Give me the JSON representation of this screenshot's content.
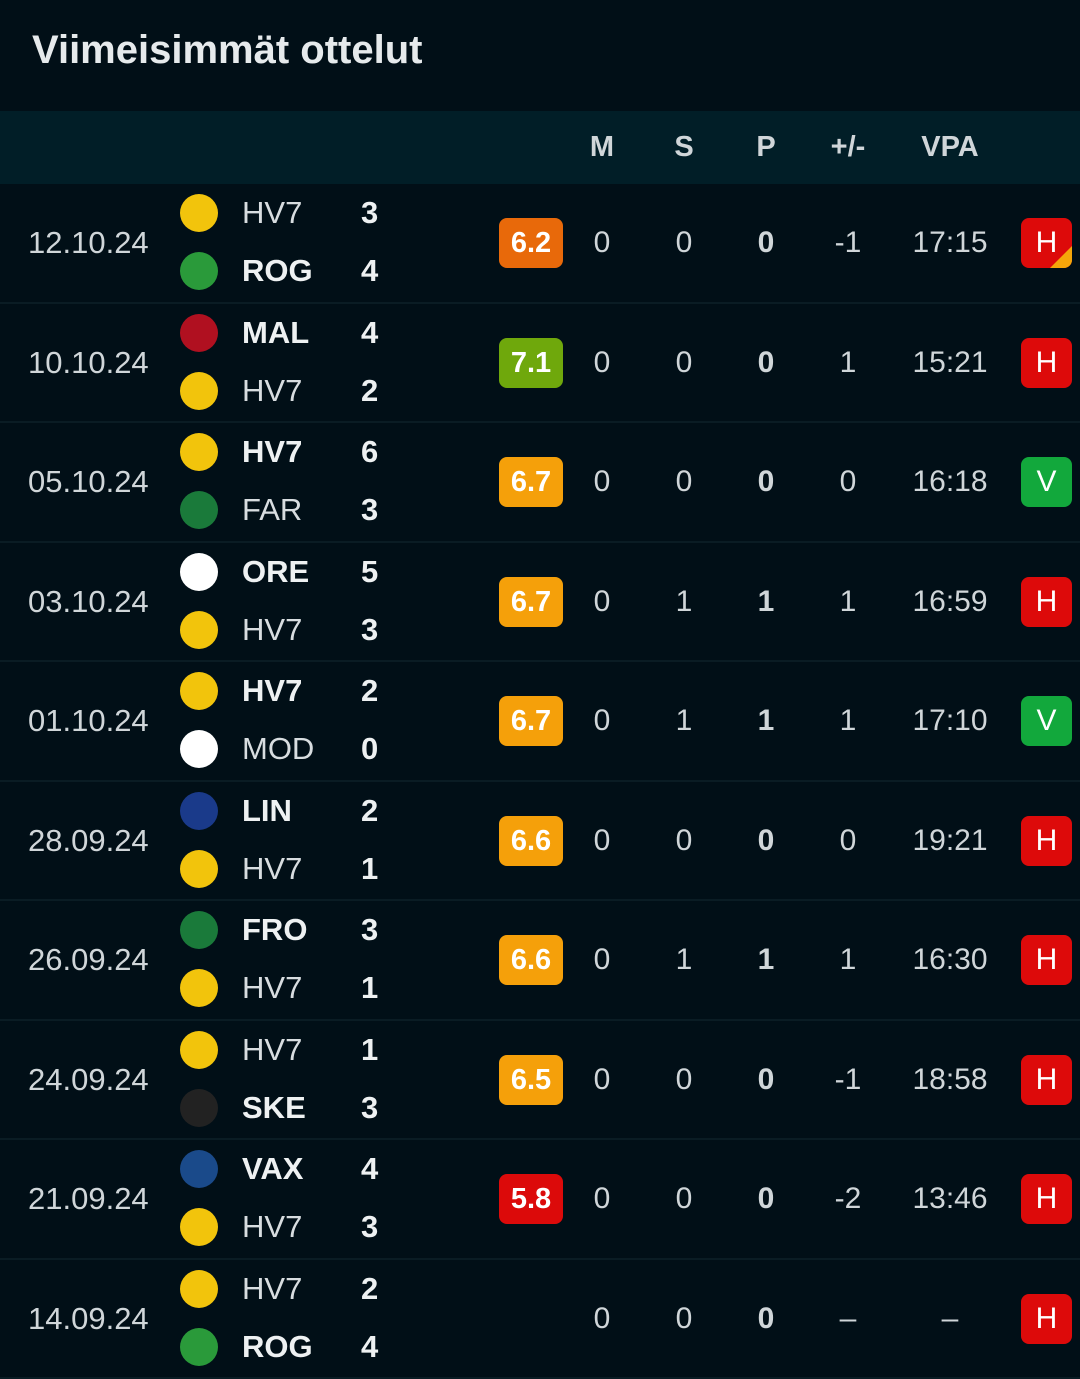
{
  "title": "Viimeisimmät ottelut",
  "columns": [
    "M",
    "S",
    "P",
    "+/-",
    "VPA"
  ],
  "colors": {
    "background": "#010f17",
    "header": "#011e27",
    "rating_orange_dark": "#e8690a",
    "rating_green": "#6fa80c",
    "rating_orange": "#f5a00a",
    "rating_red": "#dc0a0a",
    "loss": "#dd0a0a",
    "win": "#12a83c"
  },
  "matches": [
    {
      "date": "12.10.24",
      "home": "HV7",
      "home_score": "3",
      "away": "ROG",
      "away_score": "4",
      "winner": "away",
      "rating": "6.2",
      "rating_color": "#e8690a",
      "m": "0",
      "s": "0",
      "p": "0",
      "pm": "-1",
      "vpa": "17:15",
      "result": "H",
      "result_note": "partial"
    },
    {
      "date": "10.10.24",
      "home": "MAL",
      "home_score": "4",
      "away": "HV7",
      "away_score": "2",
      "winner": "home",
      "rating": "7.1",
      "rating_color": "#6fa80c",
      "m": "0",
      "s": "0",
      "p": "0",
      "pm": "1",
      "vpa": "15:21",
      "result": "H"
    },
    {
      "date": "05.10.24",
      "home": "HV7",
      "home_score": "6",
      "away": "FAR",
      "away_score": "3",
      "winner": "home",
      "rating": "6.7",
      "rating_color": "#f5a00a",
      "m": "0",
      "s": "0",
      "p": "0",
      "pm": "0",
      "vpa": "16:18",
      "result": "V"
    },
    {
      "date": "03.10.24",
      "home": "ORE",
      "home_score": "5",
      "away": "HV7",
      "away_score": "3",
      "winner": "home",
      "rating": "6.7",
      "rating_color": "#f5a00a",
      "m": "0",
      "s": "1",
      "p": "1",
      "pm": "1",
      "vpa": "16:59",
      "result": "H"
    },
    {
      "date": "01.10.24",
      "home": "HV7",
      "home_score": "2",
      "away": "MOD",
      "away_score": "0",
      "winner": "home",
      "rating": "6.7",
      "rating_color": "#f5a00a",
      "m": "0",
      "s": "1",
      "p": "1",
      "pm": "1",
      "vpa": "17:10",
      "result": "V"
    },
    {
      "date": "28.09.24",
      "home": "LIN",
      "home_score": "2",
      "away": "HV7",
      "away_score": "1",
      "winner": "home",
      "rating": "6.6",
      "rating_color": "#f5a00a",
      "m": "0",
      "s": "0",
      "p": "0",
      "pm": "0",
      "vpa": "19:21",
      "result": "H"
    },
    {
      "date": "26.09.24",
      "home": "FRO",
      "home_score": "3",
      "away": "HV7",
      "away_score": "1",
      "winner": "home",
      "rating": "6.6",
      "rating_color": "#f5a00a",
      "m": "0",
      "s": "1",
      "p": "1",
      "pm": "1",
      "vpa": "16:30",
      "result": "H"
    },
    {
      "date": "24.09.24",
      "home": "HV7",
      "home_score": "1",
      "away": "SKE",
      "away_score": "3",
      "winner": "away",
      "rating": "6.5",
      "rating_color": "#f5a00a",
      "m": "0",
      "s": "0",
      "p": "0",
      "pm": "-1",
      "vpa": "18:58",
      "result": "H"
    },
    {
      "date": "21.09.24",
      "home": "VAX",
      "home_score": "4",
      "away": "HV7",
      "away_score": "3",
      "winner": "home",
      "rating": "5.8",
      "rating_color": "#dc0a0a",
      "m": "0",
      "s": "0",
      "p": "0",
      "pm": "-2",
      "vpa": "13:46",
      "result": "H"
    },
    {
      "date": "14.09.24",
      "home": "HV7",
      "home_score": "2",
      "away": "ROG",
      "away_score": "4",
      "winner": "away",
      "rating": "",
      "rating_color": "",
      "m": "0",
      "s": "0",
      "p": "0",
      "pm": "–",
      "vpa": "–",
      "result": "H"
    }
  ]
}
